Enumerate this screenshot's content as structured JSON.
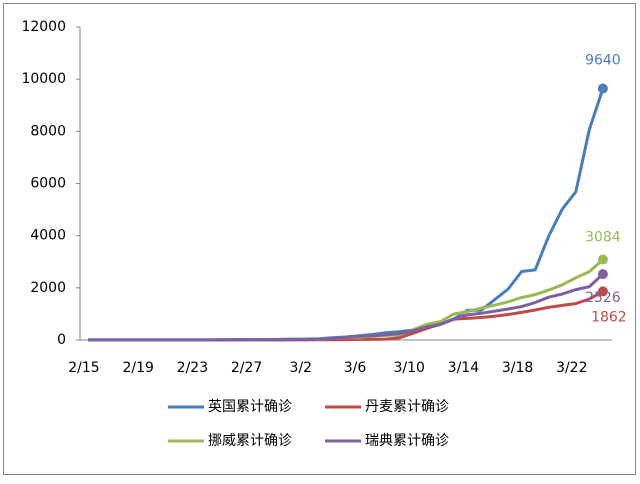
{
  "chart_data": {
    "type": "line",
    "categories": [
      "2/15",
      null,
      null,
      null,
      "2/19",
      null,
      null,
      null,
      "2/23",
      null,
      null,
      null,
      "2/27",
      null,
      null,
      null,
      "3/2",
      null,
      null,
      null,
      "3/6",
      null,
      null,
      null,
      "3/10",
      null,
      null,
      null,
      "3/14",
      null,
      null,
      null,
      "3/18",
      null,
      null,
      null,
      "3/22",
      null,
      null
    ],
    "series": [
      {
        "name": "英国累计确诊",
        "color": "#4a7ebb",
        "values": [
          9,
          9,
          9,
          9,
          9,
          9,
          9,
          13,
          13,
          13,
          15,
          19,
          20,
          20,
          23,
          36,
          40,
          51,
          87,
          116,
          164,
          209,
          278,
          321,
          383,
          460,
          594,
          798,
          1140,
          1140,
          1543,
          1950,
          2626,
          2689,
          3983,
          5018,
          5683,
          8077,
          9640
        ]
      },
      {
        "name": "丹麦累计确诊",
        "color": "#be4b48",
        "values": [
          0,
          0,
          0,
          0,
          0,
          0,
          0,
          0,
          0,
          0,
          0,
          0,
          0,
          0,
          1,
          4,
          4,
          6,
          10,
          10,
          23,
          23,
          35,
          90,
          262,
          442,
          615,
          801,
          827,
          864,
          914,
          977,
          1057,
          1151,
          1255,
          1326,
          1395,
          1572,
          1862
        ]
      },
      {
        "name": "挪威累计确诊",
        "color": "#98b954",
        "values": [
          0,
          0,
          0,
          0,
          0,
          0,
          0,
          0,
          0,
          0,
          0,
          0,
          1,
          6,
          15,
          19,
          25,
          32,
          56,
          87,
          108,
          147,
          176,
          205,
          400,
          598,
          702,
          996,
          1090,
          1221,
          1333,
          1466,
          1628,
          1742,
          1914,
          2118,
          2385,
          2621,
          3084
        ]
      },
      {
        "name": "瑞典累计确诊",
        "color": "#7d60a0",
        "values": [
          1,
          1,
          1,
          1,
          1,
          1,
          1,
          1,
          1,
          1,
          1,
          1,
          2,
          7,
          12,
          14,
          15,
          30,
          52,
          94,
          137,
          161,
          203,
          248,
          355,
          500,
          599,
          814,
          961,
          1022,
          1103,
          1190,
          1279,
          1439,
          1639,
          1763,
          1934,
          2046,
          2526
        ]
      }
    ],
    "ylim": [
      0,
      12000
    ],
    "yticks": [
      0,
      2000,
      4000,
      6000,
      8000,
      10000,
      12000
    ],
    "grid": false,
    "legend": "bottom"
  }
}
